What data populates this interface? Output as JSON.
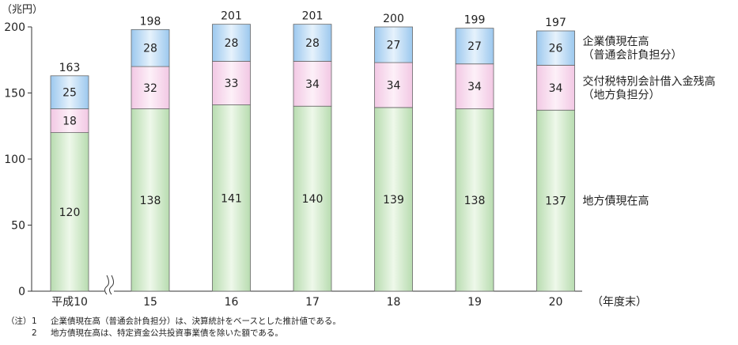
{
  "chart_data": {
    "type": "bar",
    "stacked": true,
    "y_unit_label": "（兆円）",
    "x_unit_label": "（年度末）",
    "ylim": [
      0,
      200
    ],
    "yticks": [
      0,
      50,
      100,
      150,
      200
    ],
    "categories": [
      "平成10",
      "15",
      "16",
      "17",
      "18",
      "19",
      "20"
    ],
    "axis_break_after_index": 0,
    "totals": [
      163,
      198,
      201,
      201,
      200,
      199,
      197
    ],
    "series": [
      {
        "name": "地方債現在高",
        "color_top": "#b8dcb0",
        "color_mid": "#eef8ea",
        "values": [
          120,
          138,
          141,
          140,
          139,
          138,
          137
        ]
      },
      {
        "name": "交付税特別会計借入金残高\n（地方負担分）",
        "color_top": "#f2c8e4",
        "color_mid": "#fdf0f8",
        "values": [
          18,
          32,
          33,
          34,
          34,
          34,
          34
        ]
      },
      {
        "name": "企業債現在高\n（普通会計負担分）",
        "color_top": "#9cc8ee",
        "color_mid": "#e6f2fc",
        "values": [
          25,
          28,
          28,
          28,
          27,
          27,
          26
        ]
      }
    ],
    "legend_placement": "right, beside last bar"
  },
  "notes": {
    "mark": "（注）",
    "items": [
      {
        "num": "1",
        "text": "企業債現在高（普通会計負担分）は、決算統計をベースとした推計値である。"
      },
      {
        "num": "2",
        "text": "地方債現在高は、特定資金公共投資事業債を除いた額である。"
      }
    ]
  }
}
